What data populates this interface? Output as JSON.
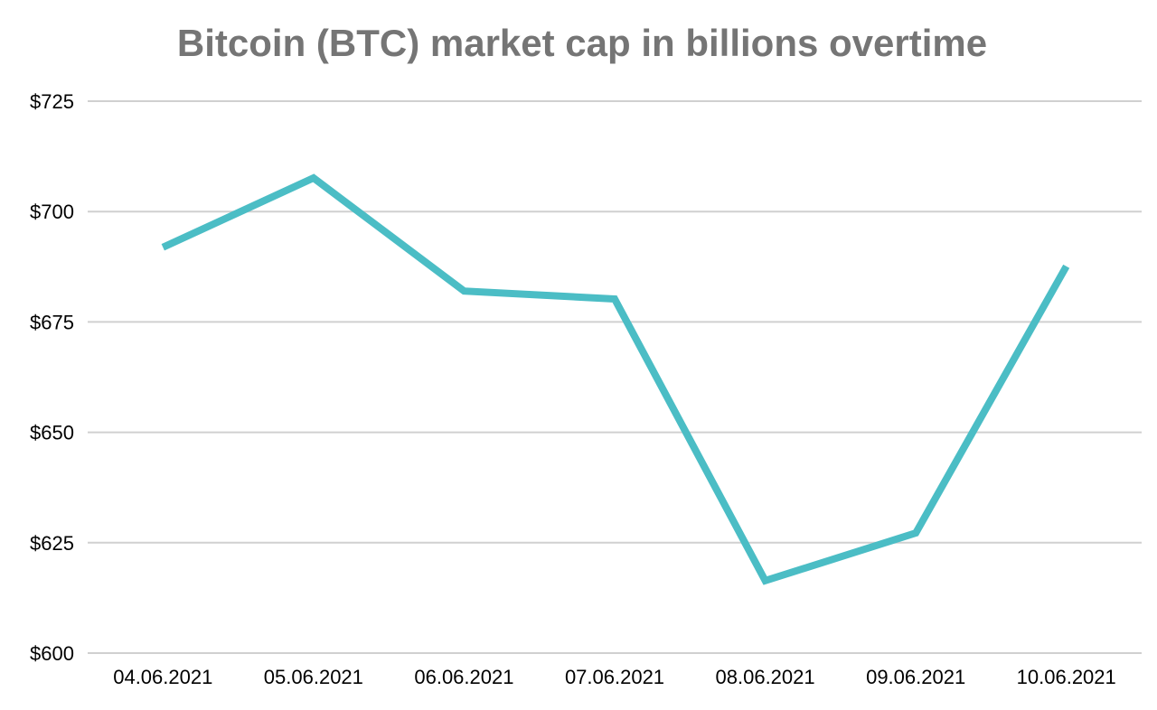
{
  "chart_data": {
    "type": "line",
    "title": "Bitcoin (BTC) market cap in billions overtime",
    "xlabel": "",
    "ylabel": "",
    "categories": [
      "04.06.2021",
      "05.06.2021",
      "06.06.2021",
      "07.06.2021",
      "08.06.2021",
      "09.06.2021",
      "10.06.2021"
    ],
    "series": [
      {
        "values": [
          691.9,
          707.6,
          682.0,
          680.2,
          616.4,
          627.2,
          687.6
        ]
      }
    ],
    "ylim": [
      600,
      725
    ],
    "yticks": [
      600,
      625,
      650,
      675,
      700,
      725
    ],
    "ytick_labels": [
      "$600",
      "$625",
      "$650",
      "$675",
      "$700",
      "$725"
    ],
    "grid": true,
    "legend": "none",
    "colors": {
      "line": "#4BBDC5",
      "grid": "#D0D0D0",
      "title": "#757575",
      "text": "#000000"
    }
  }
}
